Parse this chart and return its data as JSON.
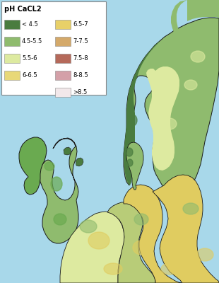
{
  "legend_title": "pH CaCL2",
  "legend_left_labels": [
    "< 4.5",
    "4.5-5.5",
    "5.5-6",
    "6-6.5"
  ],
  "legend_left_colors": [
    "#4a7c3f",
    "#8fbb6e",
    "#ddeaa0",
    "#e8d878"
  ],
  "legend_right_labels": [
    "6.5-7",
    "7-7.5",
    "7.5-8",
    "8-8.5",
    ">8.5"
  ],
  "legend_right_colors": [
    "#e8d068",
    "#d4a96a",
    "#b5695a",
    "#d4a0a8",
    "#f2e8ea"
  ],
  "background_color": "#a8d8ea",
  "ocean_color": "#a8d8ea",
  "border_color": "#1a1a1a",
  "legend_title_fontsize": 7.0,
  "legend_label_fontsize": 6.0,
  "fig_width": 3.1,
  "fig_height": 4.0,
  "dpi": 100,
  "dark_green": "#4a7c3f",
  "med_green": "#6aaa50",
  "light_green": "#8fbb6e",
  "yellow_green": "#b8cc78",
  "light_yellow": "#ddeaa0",
  "yellow": "#e0cc60",
  "tan": "#d4a96a",
  "brown_red": "#b5695a",
  "pink": "#d4a0a8",
  "light_pink": "#f2e8ea"
}
